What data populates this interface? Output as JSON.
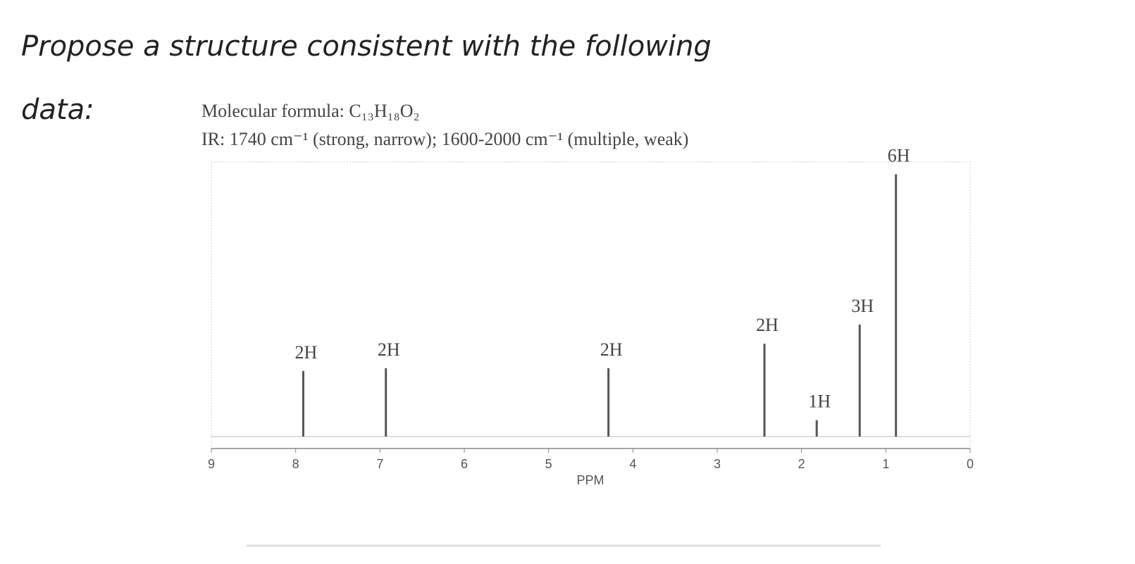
{
  "prompt": [
    "Propose a structure consistent with the following",
    "data:"
  ],
  "chart_data": {
    "type": "spectrum",
    "notes": [
      "Molecular formula: C₁₃H₁₈O₂",
      "IR: 1740 cm⁻¹ (strong, narrow); 1600-2000 cm⁻¹ (multiple, weak)"
    ],
    "x_label": "PPM",
    "x": [
      7.91,
      6.93,
      4.29,
      2.44,
      1.82,
      1.31,
      0.88
    ],
    "values": [
      24,
      25,
      25,
      34,
      6,
      41,
      96
    ],
    "value_labels": [
      "2H",
      "2H",
      "2H",
      "2H",
      "1H",
      "3H",
      "6H"
    ],
    "xlim": [
      9,
      0
    ],
    "xticks": [
      9,
      8,
      7,
      6,
      5,
      4,
      3,
      2,
      1,
      0
    ],
    "ylim": [
      0,
      100
    ],
    "color": "#555555"
  }
}
